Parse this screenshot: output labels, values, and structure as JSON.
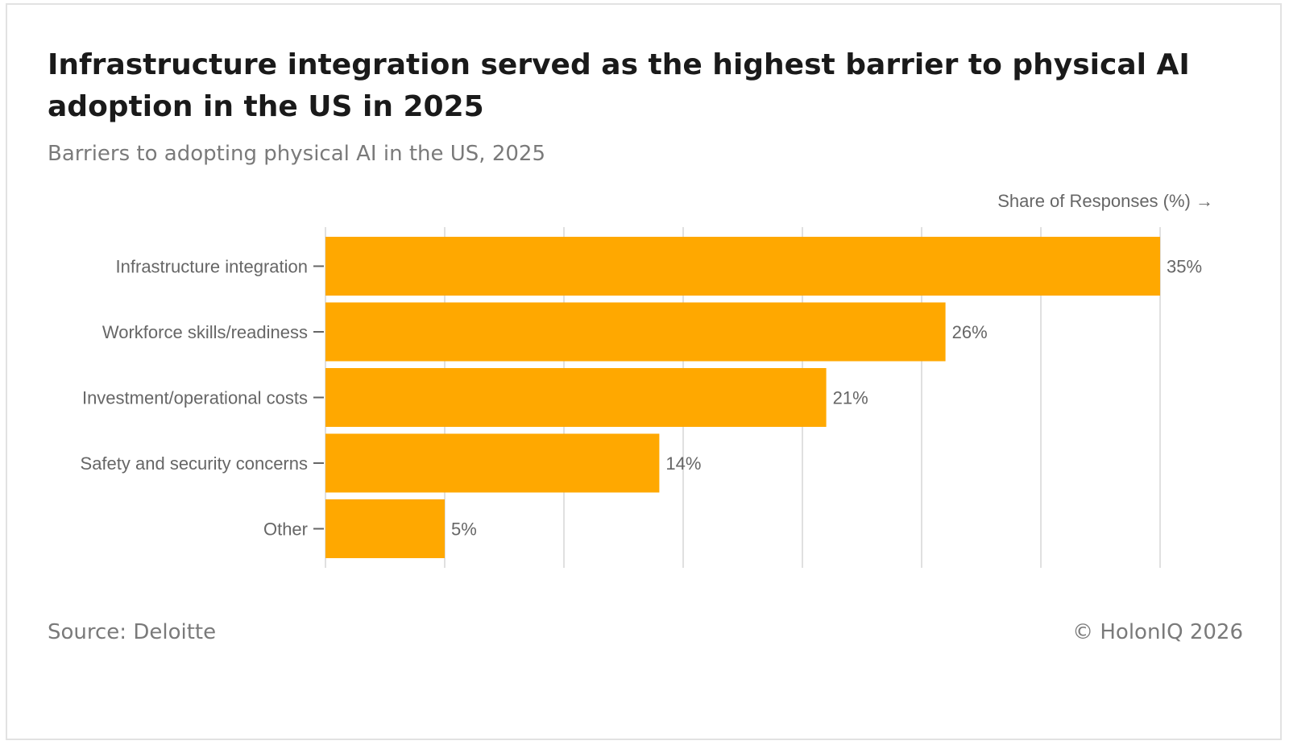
{
  "header": {
    "title": "Infrastructure integration served as the highest barrier to physical AI adoption in the US in 2025",
    "subtitle": "Barriers to adopting physical AI in the US, 2025"
  },
  "footer": {
    "source": "Source: Deloitte",
    "copyright": "© HolonIQ 2026"
  },
  "colors": {
    "bar": "#FFA800",
    "grid": "#e0e0e0",
    "text": "#666666"
  },
  "chart_data": {
    "type": "bar",
    "orientation": "horizontal",
    "title": "Infrastructure integration served as the highest barrier to physical AI adoption in the US in 2025",
    "subtitle": "Barriers to adopting physical AI in the US, 2025",
    "xlabel": "Share of Responses (%) →",
    "ylabel": "",
    "categories": [
      "Infrastructure integration",
      "Workforce skills/readiness",
      "Investment/operational costs",
      "Safety and security concerns",
      "Other"
    ],
    "values": [
      35,
      26,
      21,
      14,
      5
    ],
    "value_labels": [
      "35%",
      "26%",
      "21%",
      "14%",
      "5%"
    ],
    "xlim": [
      0,
      35
    ],
    "grid_step": 5,
    "grid": true,
    "tick_labels_shown": false
  }
}
